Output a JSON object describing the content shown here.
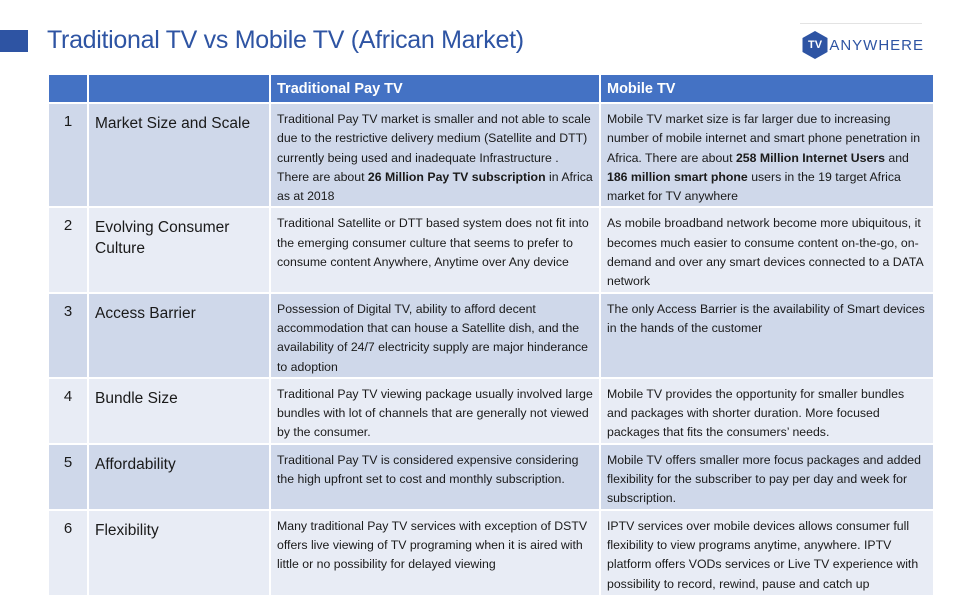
{
  "slide": {
    "title": "Traditional TV vs Mobile TV (African Market)",
    "accent_color": "#2e54a3",
    "header_color": "#4472c4",
    "row_colors": [
      "#cfd8ea",
      "#e8ecf5"
    ]
  },
  "logo": {
    "badge": "TV",
    "text": "ANYWHERE",
    "icon": "tv-anywhere-logo-icon"
  },
  "table": {
    "headers": [
      "",
      "",
      "Traditional Pay TV",
      "Mobile TV"
    ],
    "rows": [
      {
        "num": "1",
        "attribute": "Market Size and Scale",
        "traditional": {
          "t1": "Traditional Pay TV market is smaller and not able to scale due to the restrictive delivery medium (Satellite and DTT) currently being used and inadequate Infrastructure . There are about ",
          "b1": "26 Million Pay TV subscription",
          "t2": " in Africa as at 2018"
        },
        "mobile": {
          "t1": "Mobile TV market size is far larger due to increasing number of mobile internet and smart phone penetration in Africa. There are about ",
          "b1": "258 Million Internet Users",
          "t2": " and ",
          "b2": "186 million smart phone",
          "t3": " users in the 19 target Africa market for TV anywhere"
        }
      },
      {
        "num": "2",
        "attribute": "Evolving Consumer Culture",
        "traditional": "Traditional Satellite or DTT based system does not fit into the emerging consumer culture that seems to prefer to consume content Anywhere, Anytime over Any device",
        "mobile": "As mobile broadband network become more ubiquitous, it becomes much easier to consume content on-the-go, on-demand and over any smart devices connected to a DATA network"
      },
      {
        "num": "3",
        "attribute": "Access Barrier",
        "traditional": "Possession of Digital TV, ability to afford decent accommodation that can house a Satellite dish, and the availability of 24/7 electricity supply are major hinderance to adoption",
        "mobile": "The only Access Barrier is the availability  of  Smart devices in the hands of the customer"
      },
      {
        "num": "4",
        "attribute": "Bundle Size",
        "traditional": "Traditional  Pay TV viewing package usually involved large bundles with lot of channels that are generally not viewed by the consumer.",
        "mobile": "Mobile TV  provides the opportunity for smaller bundles and packages with shorter duration. More focused packages that fits the consumers’ needs."
      },
      {
        "num": "5",
        "attribute": "Affordability",
        "traditional": "Traditional Pay TV is considered expensive considering the high upfront set to cost and monthly subscription.",
        "mobile": "Mobile TV offers smaller more focus packages and added flexibility for the subscriber to pay per day and week for subscription."
      },
      {
        "num": "6",
        "attribute": "Flexibility",
        "traditional": "Many traditional Pay TV services with exception of DSTV offers live viewing of TV programing when it is aired with little or no possibility for delayed viewing",
        "mobile": "IPTV services over mobile devices allows consumer full flexibility to view programs anytime, anywhere. IPTV platform offers VODs services or Live TV experience with possibility to record, rewind, pause and catch up"
      }
    ]
  }
}
